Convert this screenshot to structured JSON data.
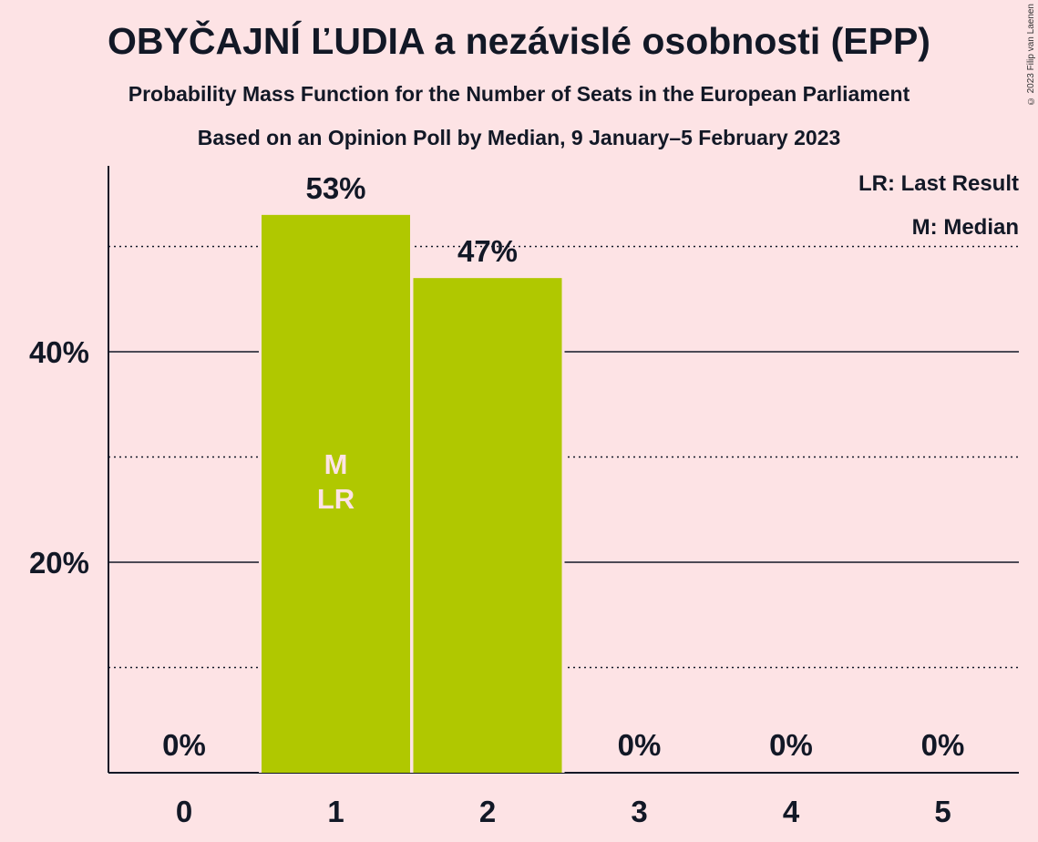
{
  "header": {
    "title": "OBYČAJNÍ ĽUDIA a nezávislé osobnosti (EPP)",
    "subtitle": "Probability Mass Function for the Number of Seats in the European Parliament",
    "subtitle2": "Based on an Opinion Poll by Median, 9 January–5 February 2023",
    "copyright": "© 2023 Filip van Laenen"
  },
  "legend": {
    "lr": "LR: Last Result",
    "m": "M: Median"
  },
  "colors": {
    "background": "#fde3e5",
    "bar": "#b0c800",
    "text": "#121826",
    "bar_label": "#fde3e5"
  },
  "chart_data": {
    "type": "bar",
    "categories": [
      "0",
      "1",
      "2",
      "3",
      "4",
      "5"
    ],
    "values": [
      0,
      53,
      47,
      0,
      0,
      0
    ],
    "value_labels": [
      "0%",
      "53%",
      "47%",
      "0%",
      "0%",
      "0%"
    ],
    "ylim": [
      0,
      57
    ],
    "major_ticks": [
      20,
      40
    ],
    "major_tick_labels": [
      "20%",
      "40%"
    ],
    "minor_gridlines": [
      10,
      30,
      50
    ],
    "bar_annotations": [
      {
        "category": "1",
        "lines": [
          "M",
          "LR"
        ]
      }
    ],
    "legend_position": "top-right"
  }
}
